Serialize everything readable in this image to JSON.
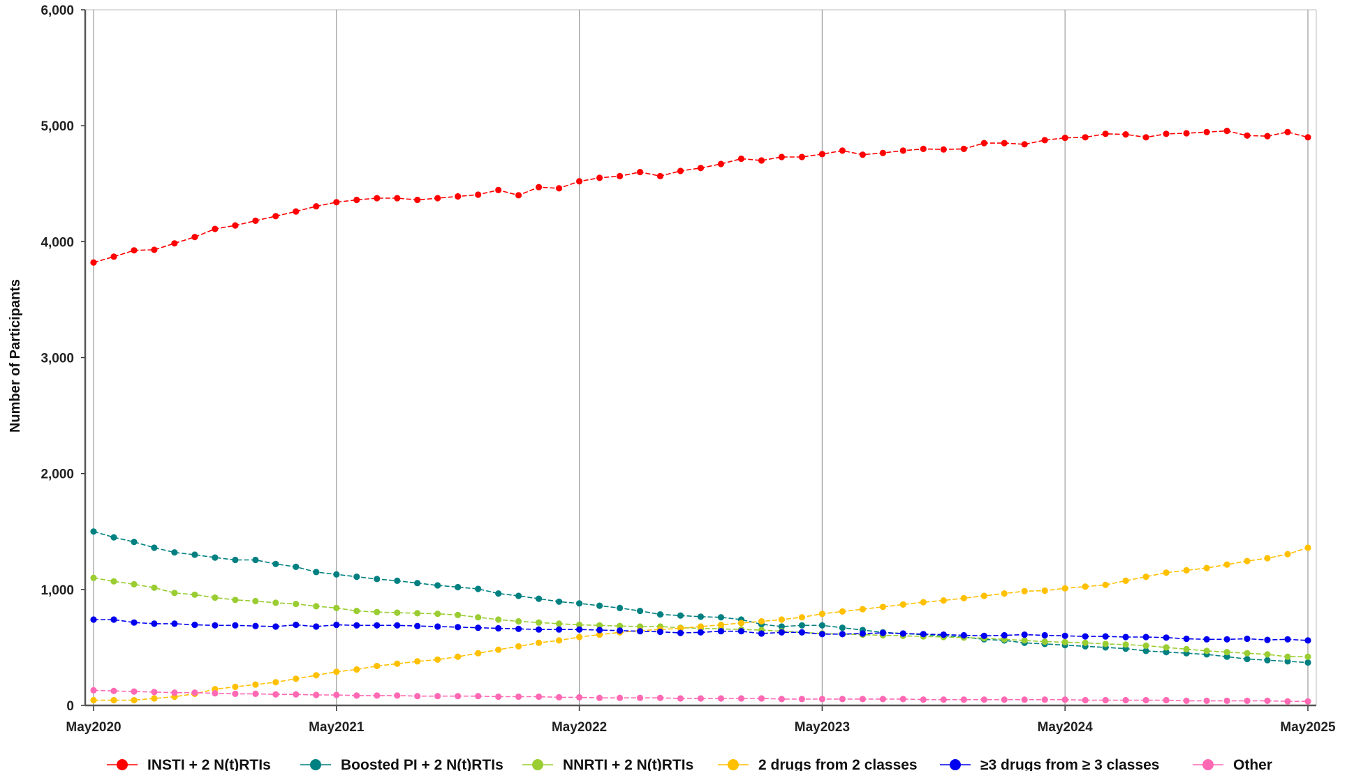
{
  "chart_data": {
    "type": "line",
    "title": "",
    "xlabel": "",
    "ylabel": "Number of Participants",
    "ylim": [
      0,
      6000
    ],
    "yticks": [
      0,
      1000,
      2000,
      3000,
      4000,
      5000,
      6000
    ],
    "ytick_labels": [
      "0",
      "1,000",
      "2,000",
      "3,000",
      "4,000",
      "5,000",
      "6,000"
    ],
    "x_start": "2020-05",
    "x_end": "2025-05",
    "xtick_labels": [
      "May2020",
      "May2021",
      "May2022",
      "May2023",
      "May2024",
      "May2025"
    ],
    "grid": "vertical",
    "legend": "bottom",
    "x": [
      "2020-05",
      "2020-06",
      "2020-07",
      "2020-08",
      "2020-09",
      "2020-10",
      "2020-11",
      "2020-12",
      "2021-01",
      "2021-02",
      "2021-03",
      "2021-04",
      "2021-05",
      "2021-06",
      "2021-07",
      "2021-08",
      "2021-09",
      "2021-10",
      "2021-11",
      "2021-12",
      "2022-01",
      "2022-02",
      "2022-03",
      "2022-04",
      "2022-05",
      "2022-06",
      "2022-07",
      "2022-08",
      "2022-09",
      "2022-10",
      "2022-11",
      "2022-12",
      "2023-01",
      "2023-02",
      "2023-03",
      "2023-04",
      "2023-05",
      "2023-06",
      "2023-07",
      "2023-08",
      "2023-09",
      "2023-10",
      "2023-11",
      "2023-12",
      "2024-01",
      "2024-02",
      "2024-03",
      "2024-04",
      "2024-05",
      "2024-06",
      "2024-07",
      "2024-08",
      "2024-09",
      "2024-10",
      "2024-11",
      "2024-12",
      "2025-01",
      "2025-02",
      "2025-03",
      "2025-04",
      "2025-05"
    ],
    "series": [
      {
        "name": "INSTI + 2 N(t)RTIs",
        "color": "#ff0000",
        "values": [
          3820,
          3870,
          3925,
          3930,
          3985,
          4040,
          4110,
          4140,
          4180,
          4220,
          4260,
          4305,
          4340,
          4360,
          4375,
          4375,
          4360,
          4375,
          4390,
          4405,
          4445,
          4400,
          4470,
          4460,
          4520,
          4550,
          4565,
          4600,
          4565,
          4610,
          4635,
          4670,
          4715,
          4700,
          4730,
          4730,
          4755,
          4785,
          4750,
          4765,
          4785,
          4800,
          4795,
          4800,
          4850,
          4850,
          4840,
          4875,
          4895,
          4900,
          4930,
          4925,
          4900,
          4930,
          4935,
          4945,
          4955,
          4915,
          4910,
          4945,
          4900
        ]
      },
      {
        "name": "Boosted PI + 2 N(t)RTIs",
        "color": "#008080",
        "values": [
          1500,
          1450,
          1410,
          1360,
          1320,
          1300,
          1275,
          1255,
          1255,
          1220,
          1195,
          1150,
          1130,
          1110,
          1090,
          1075,
          1055,
          1035,
          1020,
          1005,
          965,
          945,
          920,
          895,
          880,
          860,
          840,
          815,
          785,
          775,
          765,
          760,
          740,
          700,
          680,
          690,
          690,
          670,
          650,
          630,
          620,
          610,
          600,
          590,
          570,
          560,
          540,
          530,
          520,
          510,
          500,
          490,
          470,
          460,
          450,
          440,
          420,
          400,
          390,
          380,
          370
        ]
      },
      {
        "name": "NNRTI + 2 N(t)RTIs",
        "color": "#9acd32",
        "values": [
          1100,
          1070,
          1045,
          1015,
          970,
          955,
          930,
          910,
          900,
          885,
          875,
          855,
          840,
          815,
          805,
          800,
          795,
          790,
          780,
          760,
          740,
          725,
          715,
          705,
          695,
          690,
          685,
          680,
          680,
          670,
          665,
          660,
          655,
          650,
          640,
          630,
          620,
          615,
          610,
          605,
          600,
          595,
          590,
          585,
          580,
          570,
          560,
          550,
          545,
          540,
          530,
          525,
          515,
          500,
          485,
          470,
          460,
          450,
          440,
          420,
          420
        ]
      },
      {
        "name": "2 drugs from 2 classes",
        "color": "#ffc000",
        "values": [
          45,
          45,
          45,
          60,
          75,
          100,
          140,
          160,
          180,
          200,
          230,
          260,
          290,
          310,
          340,
          360,
          380,
          395,
          420,
          450,
          480,
          510,
          540,
          560,
          590,
          610,
          630,
          645,
          655,
          665,
          680,
          695,
          710,
          725,
          740,
          760,
          790,
          810,
          830,
          850,
          870,
          890,
          905,
          925,
          945,
          965,
          985,
          990,
          1010,
          1025,
          1040,
          1075,
          1110,
          1145,
          1165,
          1185,
          1215,
          1245,
          1270,
          1305,
          1360
        ]
      },
      {
        "name": "≥3 drugs from ≥ 3 classes",
        "color": "#0000ee",
        "values": [
          740,
          740,
          715,
          705,
          705,
          695,
          690,
          690,
          685,
          680,
          695,
          680,
          695,
          690,
          690,
          690,
          685,
          680,
          675,
          670,
          665,
          660,
          655,
          655,
          655,
          650,
          645,
          640,
          635,
          625,
          630,
          640,
          640,
          620,
          630,
          630,
          615,
          615,
          620,
          625,
          620,
          615,
          610,
          605,
          600,
          605,
          610,
          605,
          600,
          595,
          595,
          590,
          590,
          585,
          575,
          570,
          570,
          575,
          565,
          570,
          560
        ]
      },
      {
        "name": "Other",
        "color": "#ff69b4",
        "values": [
          130,
          125,
          120,
          115,
          110,
          110,
          105,
          100,
          100,
          95,
          95,
          90,
          90,
          85,
          85,
          85,
          80,
          80,
          80,
          80,
          75,
          75,
          75,
          70,
          70,
          65,
          65,
          65,
          65,
          60,
          60,
          60,
          60,
          60,
          55,
          55,
          55,
          55,
          55,
          55,
          55,
          50,
          50,
          50,
          50,
          50,
          50,
          50,
          50,
          45,
          45,
          45,
          45,
          45,
          40,
          40,
          40,
          40,
          40,
          35,
          35
        ]
      }
    ]
  }
}
